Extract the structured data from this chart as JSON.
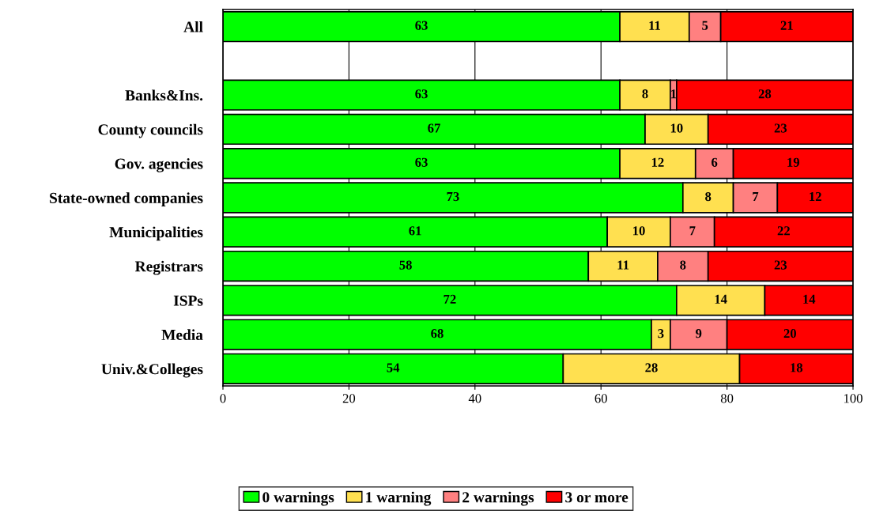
{
  "chart_data": {
    "type": "bar",
    "orientation": "horizontal",
    "stacked": true,
    "data_labels": true,
    "grid": "x",
    "legend": "bottom",
    "categories": [
      "All",
      null,
      "Banks&Ins.",
      "County councils",
      "Gov. agencies",
      "State-owned companies",
      "Municipalities",
      "Registrars",
      "ISPs",
      "Media",
      "Univ.&Colleges"
    ],
    "series": [
      {
        "name": "0 warnings",
        "color": "#00ff00",
        "values": [
          63,
          null,
          63,
          67,
          63,
          73,
          61,
          58,
          72,
          68,
          54
        ]
      },
      {
        "name": "1 warning",
        "color": "#ffe050",
        "values": [
          11,
          null,
          8,
          10,
          12,
          8,
          10,
          11,
          14,
          3,
          28
        ]
      },
      {
        "name": "2 warnings",
        "color": "#ff8080",
        "values": [
          5,
          null,
          1,
          null,
          6,
          7,
          7,
          8,
          null,
          9,
          null
        ]
      },
      {
        "name": "3 or more",
        "color": "#ff0000",
        "values": [
          21,
          null,
          28,
          23,
          19,
          12,
          22,
          23,
          14,
          20,
          18
        ]
      }
    ],
    "xlim": [
      0,
      100
    ],
    "xticks": [
      0,
      20,
      40,
      60,
      80,
      100
    ]
  }
}
